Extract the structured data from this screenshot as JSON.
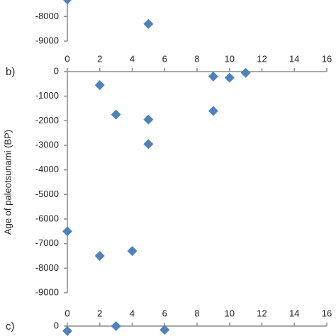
{
  "chart_data": [
    {
      "type": "scatter",
      "x": [
        0,
        5
      ],
      "values": [
        -7300,
        -8300
      ],
      "color": "#4f81bd",
      "xlim": [
        0,
        16
      ],
      "ylim": [
        -9000,
        0
      ],
      "yticks": [
        -8000,
        -9000
      ]
    },
    {
      "type": "scatter",
      "label": "b)",
      "y_label": "Age of paleotsunami (BP)",
      "x": [
        2,
        3,
        5,
        5,
        0,
        2,
        4,
        9,
        9,
        10,
        11
      ],
      "values": [
        -550,
        -1750,
        -1950,
        -2950,
        -6500,
        -7500,
        -7300,
        -200,
        -1600,
        -250,
        -50
      ],
      "color": "#4f81bd",
      "xlim": [
        0,
        16
      ],
      "xticks": [
        0,
        2,
        4,
        6,
        8,
        10,
        12,
        14,
        16
      ],
      "ylim": [
        -9000,
        0
      ],
      "yticks": [
        0,
        -1000,
        -2000,
        -3000,
        -4000,
        -5000,
        -6000,
        -7000,
        -8000,
        -9000
      ]
    },
    {
      "type": "scatter",
      "label": "c)",
      "x": [
        0,
        3,
        6
      ],
      "values": [
        -200,
        0,
        -150
      ],
      "color": "#4f81bd",
      "xlim": [
        0,
        16
      ],
      "xticks": [
        0,
        2,
        4,
        6,
        8,
        10,
        12,
        14,
        16
      ],
      "ylim": [
        -9000,
        0
      ],
      "yticks": [
        0
      ]
    }
  ]
}
